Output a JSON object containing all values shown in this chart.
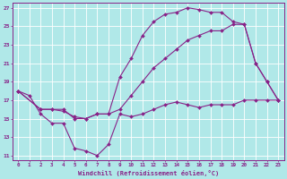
{
  "title": "",
  "xlabel": "Windchill (Refroidissement éolien,°C)",
  "bg_color": "#b0e8e8",
  "line_color": "#882288",
  "grid_color": "#ffffff",
  "xlim": [
    -0.5,
    23.5
  ],
  "ylim": [
    10.5,
    27.5
  ],
  "yticks": [
    11,
    13,
    15,
    17,
    19,
    21,
    23,
    25,
    27
  ],
  "xticks": [
    0,
    1,
    2,
    3,
    4,
    5,
    6,
    7,
    8,
    9,
    10,
    11,
    12,
    13,
    14,
    15,
    16,
    17,
    18,
    19,
    20,
    21,
    22,
    23
  ],
  "line1_x": [
    0,
    1,
    2,
    3,
    4,
    5,
    6,
    7,
    8,
    9,
    10,
    11,
    12,
    13,
    14,
    15,
    16,
    17,
    18,
    19,
    20,
    21,
    22,
    23
  ],
  "line1_y": [
    18.0,
    17.5,
    15.5,
    14.5,
    14.5,
    11.8,
    11.5,
    11.0,
    12.2,
    15.5,
    15.2,
    15.5,
    16.0,
    16.5,
    16.8,
    16.5,
    16.2,
    16.5,
    16.5,
    16.5,
    17.0,
    17.0,
    17.0,
    17.0
  ],
  "line2_x": [
    0,
    2,
    3,
    4,
    5,
    6,
    7,
    8,
    9,
    10,
    11,
    12,
    13,
    14,
    15,
    16,
    17,
    18,
    19,
    20,
    21,
    22,
    23
  ],
  "line2_y": [
    18.0,
    16.0,
    16.0,
    16.0,
    15.0,
    15.0,
    15.5,
    15.5,
    19.5,
    21.5,
    24.0,
    25.5,
    26.3,
    26.5,
    27.0,
    26.8,
    26.5,
    26.5,
    25.5,
    25.2,
    21.0,
    19.0,
    17.0
  ],
  "line3_x": [
    0,
    2,
    3,
    4,
    5,
    6,
    7,
    8,
    9,
    10,
    11,
    12,
    13,
    14,
    15,
    16,
    17,
    18,
    19,
    20,
    21,
    22,
    23
  ],
  "line3_y": [
    18.0,
    16.0,
    16.0,
    15.8,
    15.2,
    15.0,
    15.5,
    15.5,
    16.0,
    17.5,
    19.0,
    20.5,
    21.5,
    22.5,
    23.5,
    24.0,
    24.5,
    24.5,
    25.2,
    25.2,
    21.0,
    19.0,
    17.0
  ]
}
